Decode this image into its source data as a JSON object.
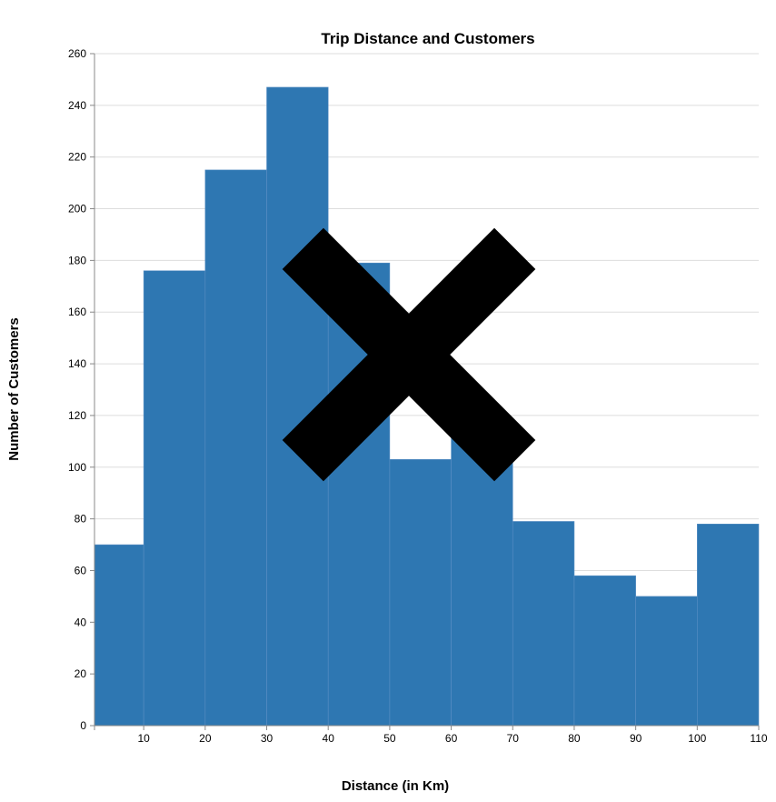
{
  "chart_data": {
    "type": "bar",
    "title": "Trip Distance and Customers",
    "xlabel": "Distance (in Km)",
    "ylabel": "Number of Customers",
    "bins": [
      {
        "x0": 2,
        "x1": 10,
        "value": 70
      },
      {
        "x0": 10,
        "x1": 20,
        "value": 176
      },
      {
        "x0": 20,
        "x1": 30,
        "value": 215
      },
      {
        "x0": 30,
        "x1": 40,
        "value": 247
      },
      {
        "x0": 40,
        "x1": 50,
        "value": 179
      },
      {
        "x0": 50,
        "x1": 60,
        "value": 103
      },
      {
        "x0": 60,
        "x1": 70,
        "value": 115
      },
      {
        "x0": 70,
        "x1": 80,
        "value": 79
      },
      {
        "x0": 80,
        "x1": 90,
        "value": 58
      },
      {
        "x0": 90,
        "x1": 100,
        "value": 50
      },
      {
        "x0": 100,
        "x1": 110,
        "value": 78
      }
    ],
    "xlim": [
      2,
      110
    ],
    "ylim": [
      0,
      260
    ],
    "xticks": [
      "10",
      "20",
      "30",
      "40",
      "50",
      "60",
      "70",
      "80",
      "90",
      "100",
      "110"
    ],
    "yticks": [
      "0",
      "20",
      "40",
      "60",
      "80",
      "100",
      "120",
      "140",
      "160",
      "180",
      "200",
      "220",
      "240",
      "260"
    ],
    "grid": true,
    "bar_color": "#2e77b2",
    "overlay_mark": "x-cross",
    "overlay_color": "#000000"
  }
}
